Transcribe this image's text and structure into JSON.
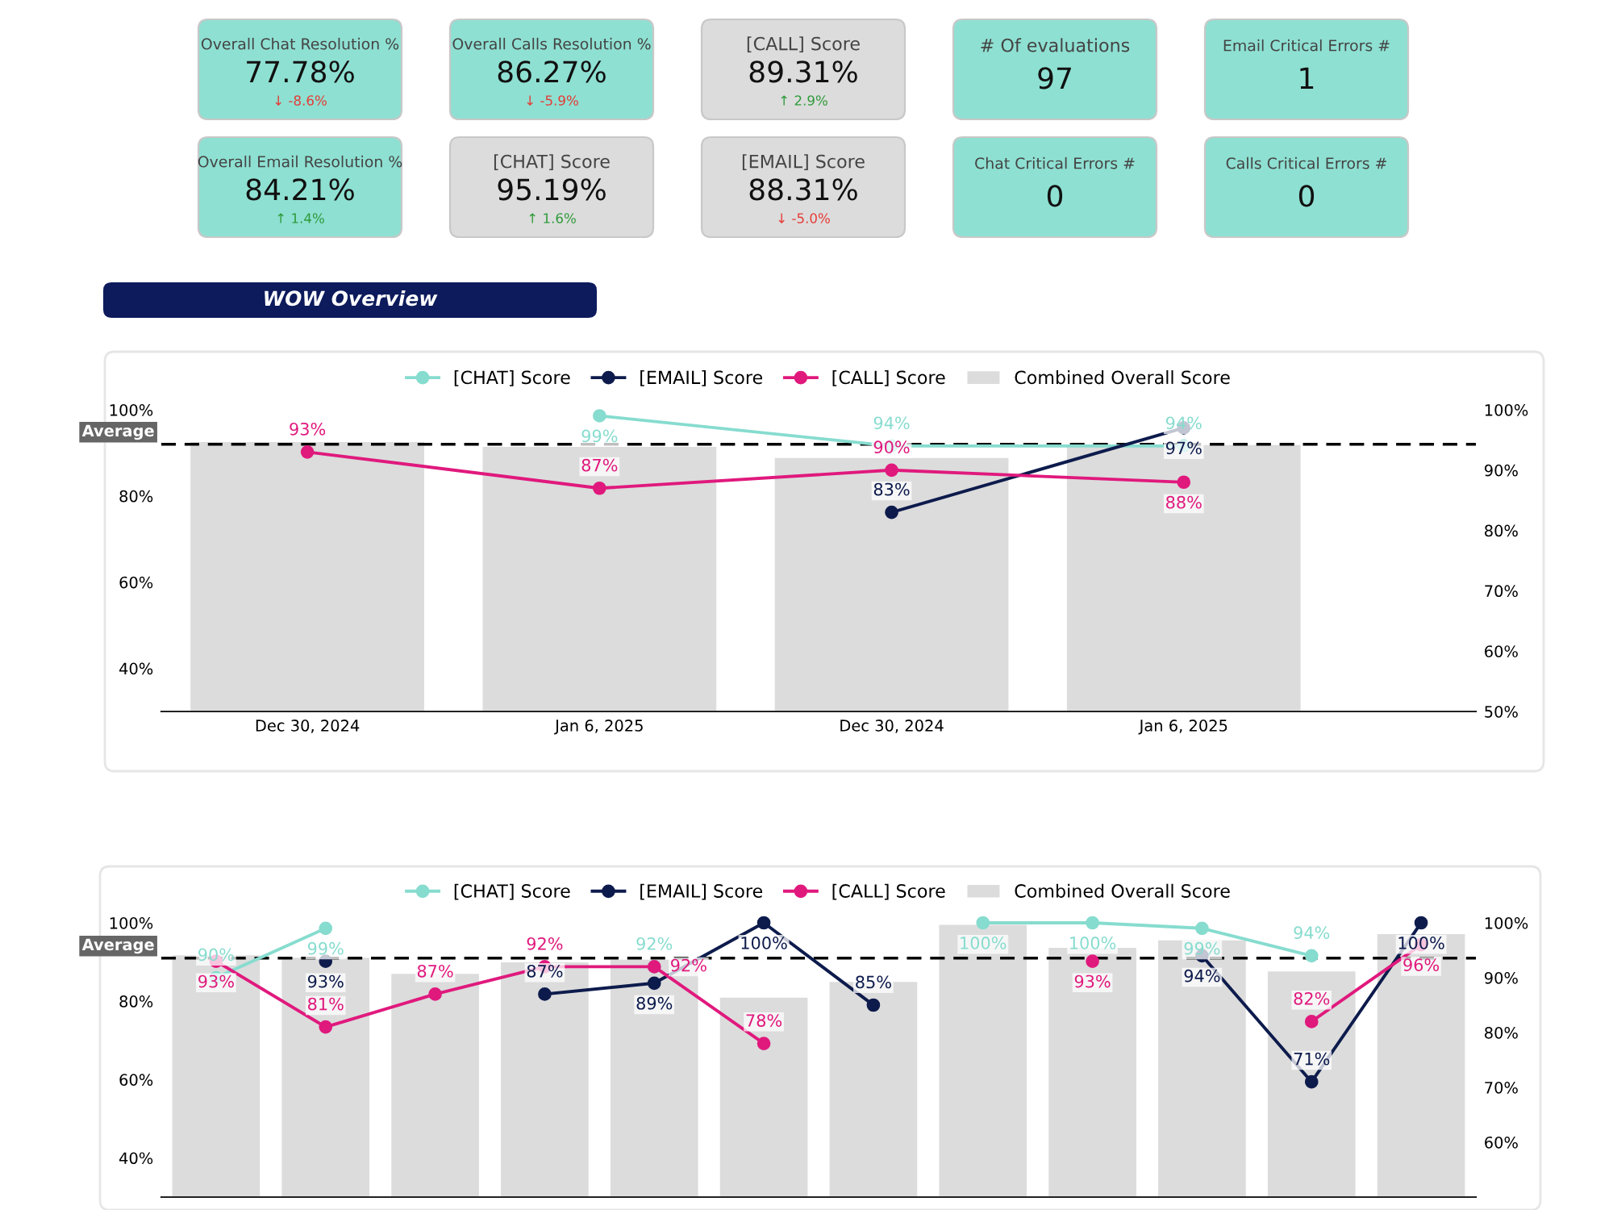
{
  "chart_data": [
    {
      "type": "other",
      "categories": [
        "Overall Chat Resolution %",
        "Overall Calls Resolution %",
        "[CALL] Score",
        "# Of evaluations",
        "Email Critical Errors #",
        "Overall Email Resolution %",
        "[CHAT] Score",
        "[EMAIL] Score",
        "Chat Critical Errors #",
        "Calls Critical Errors #"
      ],
      "value_labels": [
        "77.78%",
        "86.27%",
        "89.31%",
        "97",
        "1",
        "84.21%",
        "95.19%",
        "88.31%",
        "0",
        "0"
      ],
      "colors": [
        "#8ee0d2",
        "#8ee0d2",
        "#dcdcdc",
        "#8ee0d2",
        "#8ee0d2",
        "#8ee0d2",
        "#dcdcdc",
        "#dcdcdc",
        "#8ee0d2",
        "#8ee0d2"
      ],
      "annotations": [
        "↓ -8.6%",
        "↓ -5.9%",
        "↑ 2.9%",
        "↑ 1.4%",
        "↑ 1.6%",
        "↓ -5.0%"
      ]
    },
    {
      "type": "bar",
      "title": "WOW Overview",
      "categories": [
        "Dec 30, 2024",
        "Jan 6, 2025",
        "Dec 30, 2024",
        "Jan 6, 2025"
      ],
      "series": [
        {
          "name": "Combined Overall Score",
          "color": "#dcdcdc",
          "values": [
            92.5,
            91.4,
            88.8,
            91.8
          ]
        },
        {
          "name": "[CHAT] Score",
          "type": "line",
          "axis": "y2",
          "color": "#86dccf",
          "values": [
            null,
            99,
            94,
            94
          ],
          "value_labels": [
            null,
            "99%",
            "94%",
            "94%"
          ]
        },
        {
          "name": "[EMAIL] Score",
          "type": "line",
          "axis": "y2",
          "color": "#0d1b4c",
          "values": [
            null,
            null,
            83,
            97
          ],
          "value_labels": [
            null,
            null,
            "83%",
            "97%"
          ]
        },
        {
          "name": "[CALL] Score",
          "type": "line",
          "axis": "y2",
          "color": "#e0197d",
          "values": [
            93,
            87,
            90,
            88
          ],
          "value_labels": [
            "93%",
            "87%",
            "90%",
            "88%"
          ]
        }
      ],
      "ylim": [
        30,
        100
      ],
      "yticks": [
        {
          "value": 40,
          "label": "40%"
        },
        {
          "value": 60,
          "label": "60%"
        },
        {
          "value": 80,
          "label": "80%"
        },
        {
          "value": 100,
          "label": "100%"
        }
      ],
      "y2lim": [
        50,
        100
      ],
      "y2ticks": [
        {
          "value": 50,
          "label": "50%"
        },
        {
          "value": 60,
          "label": "60%"
        },
        {
          "value": 70,
          "label": "70%"
        },
        {
          "value": 80,
          "label": "80%"
        },
        {
          "value": 90,
          "label": "90%"
        },
        {
          "value": 100,
          "label": "100%"
        }
      ],
      "ref_lines": [
        {
          "axis": "y",
          "value": 92,
          "label": "Average",
          "color": "#000000",
          "line_style": "dashed"
        }
      ],
      "legend": "top",
      "marker": "circle"
    },
    {
      "type": "bar",
      "categories": [
        null,
        null,
        null,
        null,
        null,
        null,
        null,
        null,
        null,
        null,
        null,
        null
      ],
      "series": [
        {
          "name": "Combined Overall Score",
          "color": "#dcdcdc",
          "values": [
            91.7,
            91.1,
            87.0,
            89.9,
            90.6,
            80.9,
            84.9,
            99.5,
            93.6,
            95.5,
            87.6,
            97.1
          ]
        },
        {
          "name": "[CHAT] Score",
          "type": "line",
          "axis": "y2",
          "color": "#86dccf",
          "values": [
            90,
            99,
            null,
            null,
            92,
            null,
            null,
            100,
            100,
            99,
            94,
            null
          ],
          "value_labels": [
            "90%",
            "99%",
            null,
            null,
            "92%",
            null,
            null,
            "100%",
            "100%",
            "99%",
            "94%",
            null
          ]
        },
        {
          "name": "[EMAIL] Score",
          "type": "line",
          "axis": "y2",
          "color": "#0d1b4c",
          "values": [
            null,
            93,
            null,
            87,
            89,
            100,
            85,
            null,
            null,
            94,
            71,
            100
          ],
          "value_labels": [
            null,
            "93%",
            null,
            "87%",
            "89%",
            "100%",
            "85%",
            null,
            null,
            "94%",
            "71%",
            "100%"
          ]
        },
        {
          "name": "[CALL] Score",
          "type": "line",
          "axis": "y2",
          "color": "#e0197d",
          "values": [
            93,
            81,
            87,
            92,
            92,
            78,
            null,
            null,
            93,
            null,
            82,
            96
          ],
          "value_labels": [
            "93%",
            "81%",
            "87%",
            "92%",
            "92%",
            "78%",
            null,
            null,
            "93%",
            null,
            "82%",
            "96%"
          ]
        }
      ],
      "ylim": [
        30,
        100
      ],
      "yticks": [
        {
          "value": 40,
          "label": "40%"
        },
        {
          "value": 60,
          "label": "60%"
        },
        {
          "value": 80,
          "label": "80%"
        },
        {
          "value": 100,
          "label": "100%"
        }
      ],
      "y2lim": [
        50,
        100
      ],
      "y2ticks": [
        {
          "value": 60,
          "label": "60%"
        },
        {
          "value": 70,
          "label": "70%"
        },
        {
          "value": 80,
          "label": "80%"
        },
        {
          "value": 90,
          "label": "90%"
        },
        {
          "value": 100,
          "label": "100%"
        }
      ],
      "ref_lines": [
        {
          "axis": "y",
          "value": 91,
          "label": "Average",
          "color": "#000000",
          "line_style": "dashed"
        }
      ],
      "tick_labels": "y",
      "legend": "top",
      "marker": "circle"
    }
  ]
}
